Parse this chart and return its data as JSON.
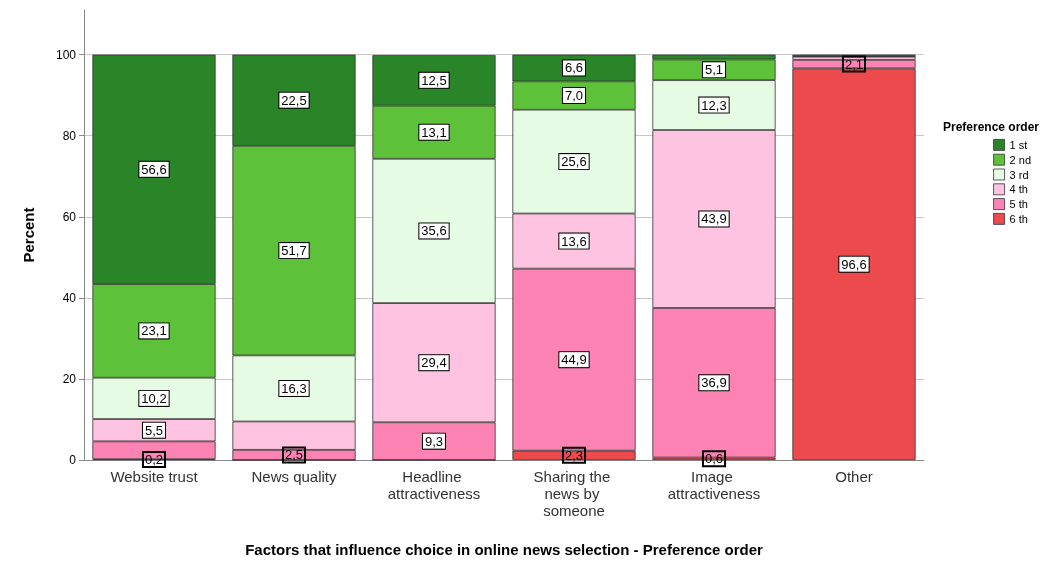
{
  "chart_data": {
    "type": "bar",
    "stacked": true,
    "xlabel": "Factors that influence choice in online news selection - Preference order",
    "ylabel": "Percent",
    "legend_title": "Preference order",
    "legend": "right",
    "grid": "y",
    "categories": [
      "Website trust",
      "News quality",
      "Headline attractiveness",
      "Sharing the news by someone",
      "Image attractiveness",
      "Other"
    ],
    "ylim": [
      0,
      111
    ],
    "yticks": [
      0,
      20,
      40,
      60,
      80,
      100
    ],
    "series": [
      {
        "name": "6 th",
        "color": "#ec4a4c",
        "values": [
          0.2,
          0,
          0,
          2.3,
          0.6,
          96.6
        ],
        "value_labels": [
          "0,2",
          null,
          null,
          "2,3",
          "0,6",
          "96,6"
        ]
      },
      {
        "name": "5 th",
        "color": "#fd83b4",
        "values": [
          4.4,
          2.5,
          9.3,
          44.9,
          36.9,
          2.1
        ],
        "value_labels": [
          null,
          "2,5",
          "9,3",
          "44,9",
          "36,9",
          "2,1"
        ]
      },
      {
        "name": "4 th",
        "color": "#fec3e0",
        "values": [
          5.5,
          7.0,
          29.4,
          13.6,
          43.9,
          0.8
        ],
        "value_labels": [
          "5,5",
          null,
          "29,4",
          "13,6",
          "43,9",
          null
        ]
      },
      {
        "name": "3 rd",
        "color": "#e5fbe3",
        "values": [
          10.2,
          16.3,
          35.6,
          25.6,
          12.3,
          null
        ],
        "value_labels": [
          "10,2",
          "16,3",
          "35,6",
          "25,6",
          "12,3",
          null
        ]
      },
      {
        "name": "2 nd",
        "color": "#5ec13a",
        "values": [
          23.1,
          51.7,
          13.1,
          7.0,
          5.1,
          0.1
        ],
        "value_labels": [
          "23,1",
          "51,7",
          "13,1",
          "7,0",
          "5,1",
          null
        ]
      },
      {
        "name": "1 st",
        "color": "#2a8428",
        "values": [
          56.6,
          22.5,
          12.5,
          6.6,
          1.2,
          0.4
        ],
        "value_labels": [
          "56,6",
          "22,5",
          "12,5",
          "6,6",
          null,
          null
        ]
      }
    ]
  }
}
